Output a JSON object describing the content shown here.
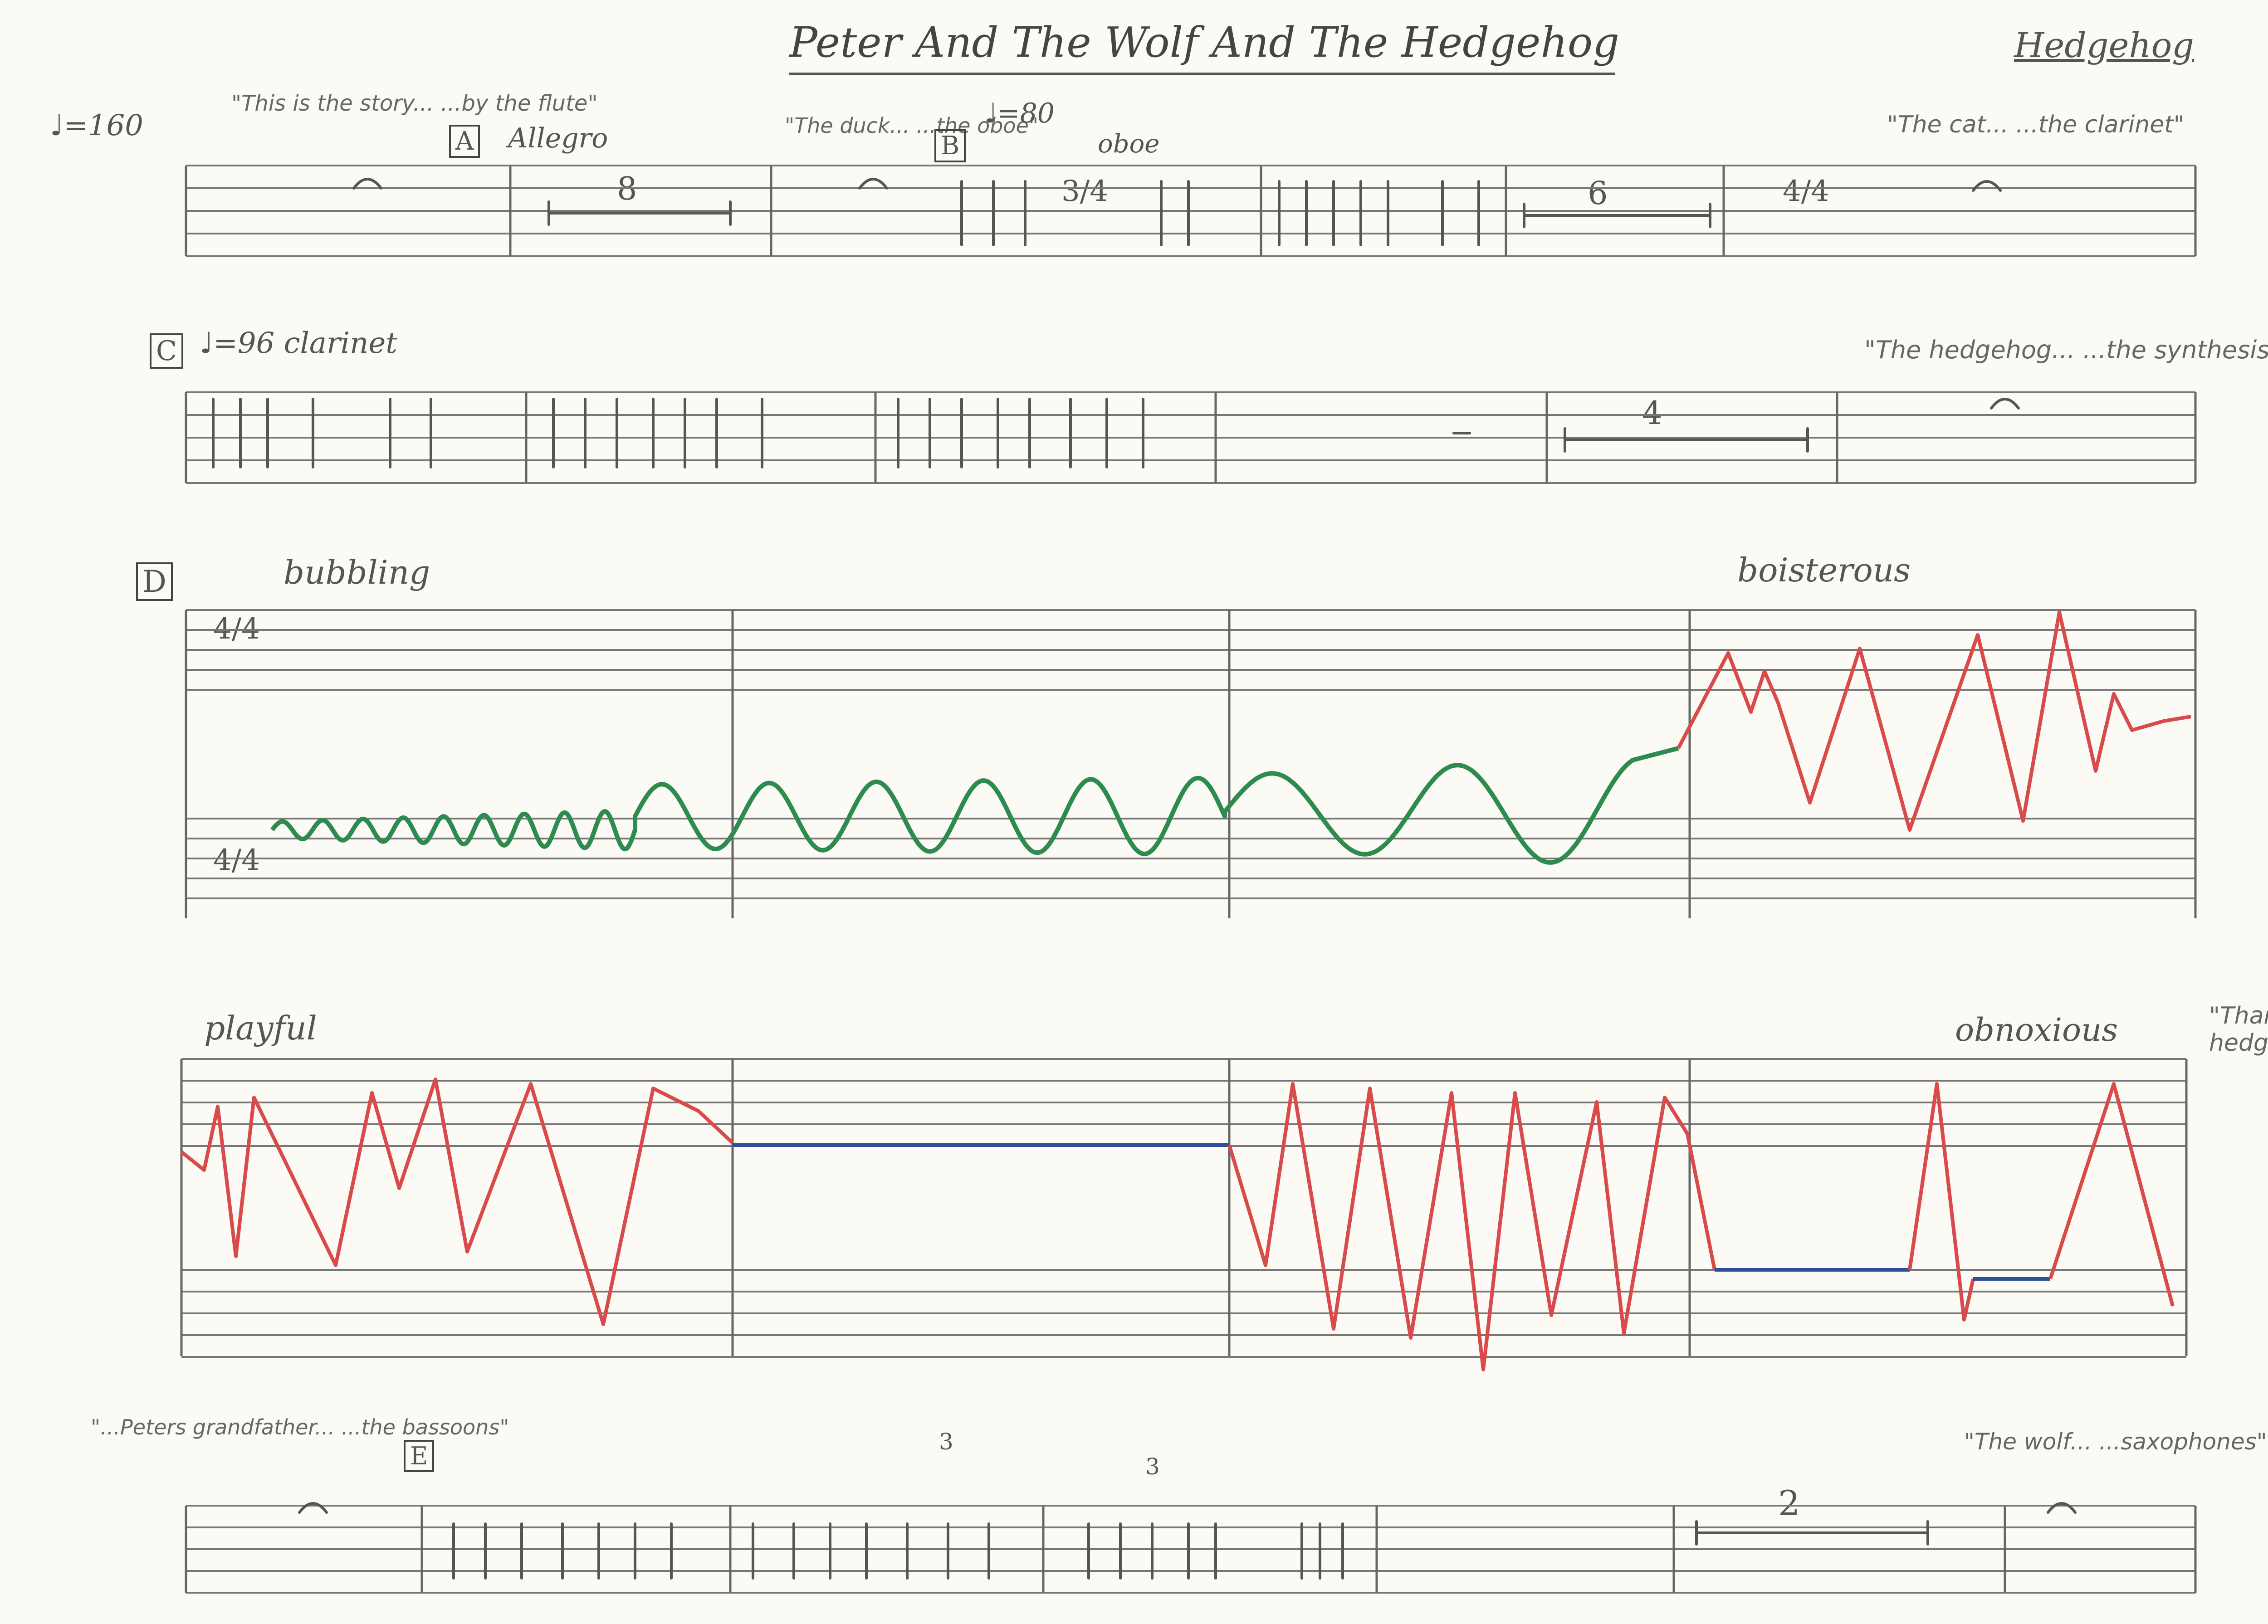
{
  "header": {
    "title": "Peter And The Wolf And The Hedgehog",
    "corner_label": "Hedgehog"
  },
  "system1": {
    "tempo": "♩=160",
    "quote_a": "\"This is the story... ...by the flute\"",
    "rehearsal_a": "A",
    "tempo_text": "Allegro",
    "rest_count_1": "8",
    "quote_b": "\"The duck... ...the oboe\"",
    "rehearsal_b": "B",
    "tempo_b": "♩=80",
    "instrument_b": "oboe",
    "time_b": "3/4",
    "rest_count_2": "6",
    "time_c": "4/4",
    "quote_c": "\"The cat... ...the clarinet\""
  },
  "system2": {
    "rehearsal_c": "C",
    "tempo_c": "♩=96 clarinet",
    "rest_count": "4",
    "quote_d": "\"The hedgehog... ...the synthesiser\""
  },
  "system3": {
    "rehearsal_d": "D",
    "mood_1": "bubbling",
    "mood_2": "boisterous",
    "time_sig": "4/4"
  },
  "system4": {
    "mood_1": "playful",
    "mood_2": "obnoxious",
    "quote_e": "\"Thank you hedgehog...\""
  },
  "system5": {
    "quote_f": "\"...Peters grandfather... ...the bassoons\"",
    "rehearsal_e": "E",
    "rest_count": "2",
    "tuplet": "3",
    "quote_g": "\"The wolf... ...saxophones\""
  },
  "colors": {
    "ink": "#555555",
    "green_line": "#2e8b4f",
    "red_line": "#d94a4a",
    "blue_line": "#2f4f9a",
    "title_ink": "#444444"
  }
}
